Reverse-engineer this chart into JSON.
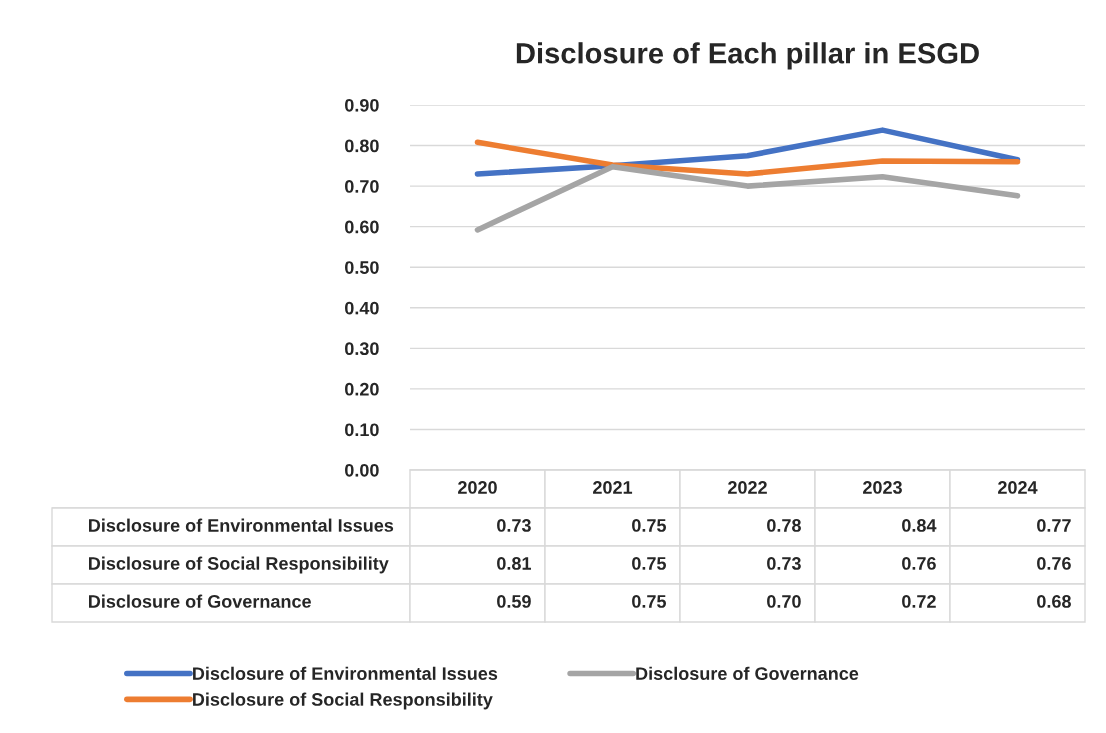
{
  "chart_data": {
    "type": "line",
    "title": "Disclosure of Each pillar in ESGD",
    "categories": [
      "2020",
      "2021",
      "2022",
      "2023",
      "2024"
    ],
    "series": [
      {
        "name": "Disclosure of Environmental Issues",
        "color": "#4472c4",
        "values": [
          0.73,
          0.75,
          0.775,
          0.838,
          0.765
        ],
        "value_labels": [
          "0.73",
          "0.75",
          "0.78",
          "0.84",
          "0.77"
        ]
      },
      {
        "name": "Disclosure of Social Responsibility",
        "color": "#ed7d31",
        "values": [
          0.808,
          0.752,
          0.73,
          0.762,
          0.76
        ],
        "value_labels": [
          "0.81",
          "0.75",
          "0.73",
          "0.76",
          "0.76"
        ]
      },
      {
        "name": "Disclosure of Governance",
        "color": "#a5a5a5",
        "values": [
          0.592,
          0.748,
          0.7,
          0.723,
          0.676
        ],
        "value_labels": [
          "0.59",
          "0.75",
          "0.70",
          "0.72",
          "0.68"
        ]
      }
    ],
    "ylim": [
      0,
      0.9
    ],
    "yticks": [
      {
        "value": 0,
        "label": "0.00"
      },
      {
        "value": 0.1,
        "label": "0.10"
      },
      {
        "value": 0.2,
        "label": "0.20"
      },
      {
        "value": 0.3,
        "label": "0.30"
      },
      {
        "value": 0.4,
        "label": "0.40"
      },
      {
        "value": 0.5,
        "label": "0.50"
      },
      {
        "value": 0.6,
        "label": "0.60"
      },
      {
        "value": 0.7,
        "label": "0.70"
      },
      {
        "value": 0.8,
        "label": "0.80"
      },
      {
        "value": 0.9,
        "label": "0.90"
      }
    ],
    "grid": "y",
    "legend": "bottom",
    "marker": "none",
    "line_style": "solid"
  }
}
